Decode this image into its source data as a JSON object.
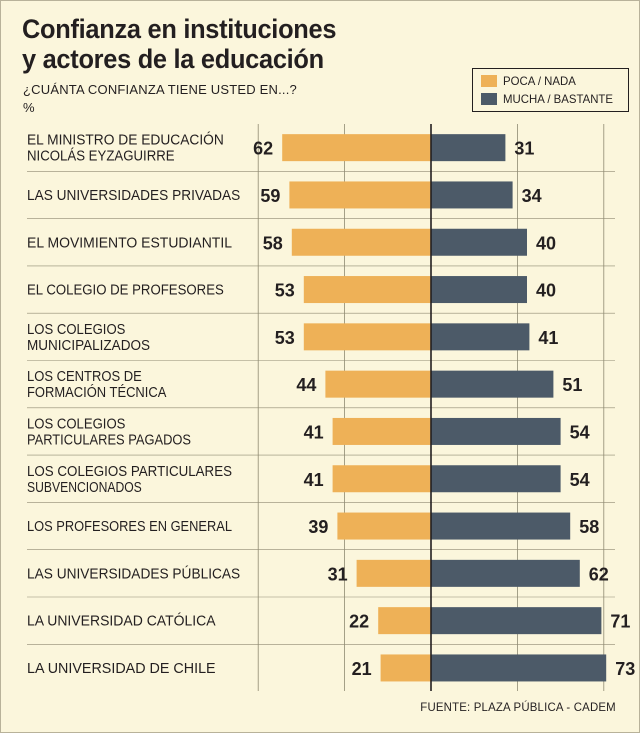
{
  "title_line1": "Confianza en instituciones",
  "title_line2": "y actores de la educación",
  "subtitle": "¿CUÁNTA CONFIANZA TIENE USTED EN...?",
  "unit": "%",
  "legend": {
    "poca": "POCA / NADA",
    "mucha": "MUCHA / BASTANTE"
  },
  "source": "FUENTE: PLAZA PÚBLICA - CADEM",
  "colors": {
    "poca": "#eeb157",
    "mucha": "#4c5a68",
    "background": "#fbf6dc",
    "gridline": "#8f8a72",
    "text": "#231f20"
  },
  "chart_data": {
    "type": "bar",
    "orientation": "horizontal-diverging",
    "title": "Confianza en instituciones y actores de la educación",
    "categories": [
      [
        "EL MINISTRO DE EDUCACIÓN",
        "NICOLÁS EYZAGUIRRE"
      ],
      [
        "LAS UNIVERSIDADES PRIVADAS"
      ],
      [
        "EL MOVIMIENTO ESTUDIANTIL"
      ],
      [
        "EL COLEGIO DE PROFESORES"
      ],
      [
        "LOS COLEGIOS",
        "MUNICIPALIZADOS"
      ],
      [
        "LOS CENTROS DE",
        "FORMACIÓN TÉCNICA"
      ],
      [
        "LOS COLEGIOS",
        "PARTICULARES PAGADOS"
      ],
      [
        "LOS COLEGIOS PARTICULARES",
        "SUBVENCIONADOS"
      ],
      [
        "LOS PROFESORES EN GENERAL"
      ],
      [
        "LAS UNIVERSIDADES PÚBLICAS"
      ],
      [
        "LA UNIVERSIDAD CATÓLICA"
      ],
      [
        "LA UNIVERSIDAD DE CHILE"
      ]
    ],
    "series": [
      {
        "name": "POCA / NADA",
        "values": [
          62,
          59,
          58,
          53,
          53,
          44,
          41,
          41,
          39,
          31,
          22,
          21
        ]
      },
      {
        "name": "MUCHA / BASTANTE",
        "values": [
          31,
          34,
          40,
          40,
          41,
          51,
          54,
          54,
          58,
          62,
          71,
          73
        ]
      }
    ],
    "xlim": [
      -80,
      80
    ],
    "grid": true,
    "legend_position": "top-right"
  }
}
